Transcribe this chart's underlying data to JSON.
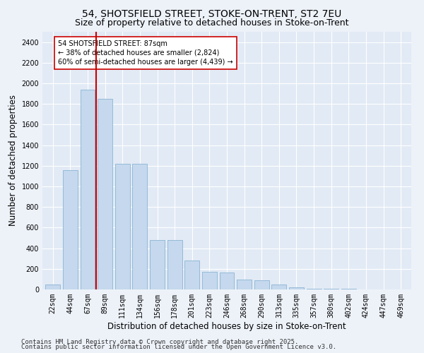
{
  "title_line1": "54, SHOTSFIELD STREET, STOKE-ON-TRENT, ST2 7EU",
  "title_line2": "Size of property relative to detached houses in Stoke-on-Trent",
  "xlabel": "Distribution of detached houses by size in Stoke-on-Trent",
  "ylabel": "Number of detached properties",
  "categories": [
    "22sqm",
    "44sqm",
    "67sqm",
    "89sqm",
    "111sqm",
    "134sqm",
    "156sqm",
    "178sqm",
    "201sqm",
    "223sqm",
    "246sqm",
    "268sqm",
    "290sqm",
    "313sqm",
    "335sqm",
    "357sqm",
    "380sqm",
    "402sqm",
    "424sqm",
    "447sqm",
    "469sqm"
  ],
  "values": [
    50,
    1160,
    1940,
    1850,
    1220,
    1220,
    480,
    480,
    280,
    170,
    165,
    95,
    90,
    45,
    22,
    8,
    6,
    4,
    2,
    2,
    2
  ],
  "bar_color": "#c5d8ed",
  "bar_edge_color": "#8ab4d4",
  "vline_x": 2.5,
  "vline_color": "#cc0000",
  "annotation_text": "54 SHOTSFIELD STREET: 87sqm\n← 38% of detached houses are smaller (2,824)\n60% of semi-detached houses are larger (4,439) →",
  "annotation_box_facecolor": "#ffffff",
  "annotation_box_edgecolor": "#cc0000",
  "ylim": [
    0,
    2500
  ],
  "yticks": [
    0,
    200,
    400,
    600,
    800,
    1000,
    1200,
    1400,
    1600,
    1800,
    2000,
    2200,
    2400
  ],
  "footer_line1": "Contains HM Land Registry data © Crown copyright and database right 2025.",
  "footer_line2": "Contains public sector information licensed under the Open Government Licence v3.0.",
  "bg_color": "#edf2f9",
  "plot_bg_color": "#e2eaf5",
  "grid_color": "#ffffff",
  "title_fontsize": 10,
  "subtitle_fontsize": 9,
  "axis_label_fontsize": 8.5,
  "tick_fontsize": 7,
  "annotation_fontsize": 7,
  "footer_fontsize": 6.5
}
